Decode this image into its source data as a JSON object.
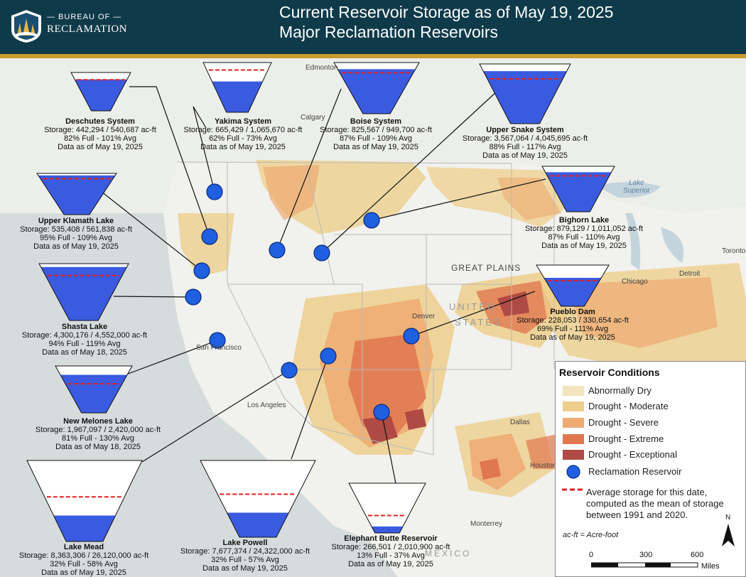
{
  "header": {
    "org_line1": "— BUREAU OF —",
    "org_line2": "RECLAMATION",
    "title_line1": "Current Reservoir Storage as of May 19, 2025",
    "title_line2": "Major Reclamation Reservoirs",
    "bg_color": "#0f3a4a",
    "accent_color": "#c99a2e"
  },
  "map_labels": {
    "edmonton": "Edmonton",
    "calgary": "Calgary",
    "lake_superior_1": "Lake",
    "lake_superior_2": "Superior",
    "toronto": "Toronto",
    "detroit": "Detroit",
    "chicago": "Chicago",
    "great_plains": "GREAT PLAINS",
    "united_1": "UNITED",
    "united_2": "STATES",
    "denver": "Denver",
    "san_francisco": "San Francisco",
    "los_angeles": "Los Angeles",
    "dallas": "Dallas",
    "houston": "Houston",
    "monterrey": "Monterrey",
    "mexico": "MEXICO"
  },
  "reservoirs": [
    {
      "name": "Deschutes System",
      "storage": "Storage: 442,294 / 540,687 ac-ft",
      "pct": "82% Full - 101% Avg",
      "date": "Data as of May 19, 2025",
      "fill": 0.82,
      "avg": 0.81
    },
    {
      "name": "Yakima System",
      "storage": "Storage: 665,429 / 1,065,670 ac-ft",
      "pct": "62% Full - 73% Avg",
      "date": "Data as of May 19, 2025",
      "fill": 0.62,
      "avg": 0.85
    },
    {
      "name": "Boise System",
      "storage": "Storage: 825,567 / 949,700 ac-ft",
      "pct": "87% Full - 109% Avg",
      "date": "Data as of May 19, 2025",
      "fill": 0.87,
      "avg": 0.8
    },
    {
      "name": "Upper Snake System",
      "storage": "Storage: 3,567,064 / 4,045,695 ac-ft",
      "pct": "88% Full - 117% Avg",
      "date": "Data as of May 19, 2025",
      "fill": 0.88,
      "avg": 0.75
    },
    {
      "name": "Upper Klamath Lake",
      "storage": "Storage: 535,408 / 561,838 ac-ft",
      "pct": "95% Full - 109% Avg",
      "date": "Data as of May 19, 2025",
      "fill": 0.95,
      "avg": 0.87
    },
    {
      "name": "Bighorn Lake",
      "storage": "Storage: 879,129 / 1,011,052 ac-ft",
      "pct": "87% Full - 110% Avg",
      "date": "Data as of May 19, 2025",
      "fill": 0.87,
      "avg": 0.79
    },
    {
      "name": "Shasta Lake",
      "storage": "Storage: 4,300,176 / 4,552,000 ac-ft",
      "pct": "94% Full - 119% Avg",
      "date": "Data as of May 18, 2025",
      "fill": 0.94,
      "avg": 0.79
    },
    {
      "name": "Pueblo Dam",
      "storage": "Storage: 228,053 / 330,654 ac-ft",
      "pct": "69% Full - 111% Avg",
      "date": "Data as of May 19, 2025",
      "fill": 0.69,
      "avg": 0.62
    },
    {
      "name": "New Melones Lake",
      "storage": "Storage: 1,967,097 / 2,420,000 ac-ft",
      "pct": "81% Full - 130% Avg",
      "date": "Data as of May 18, 2025",
      "fill": 0.81,
      "avg": 0.62
    },
    {
      "name": "Lake Mead",
      "storage": "Storage: 8,363,306 / 26,120,000 ac-ft",
      "pct": "32% Full - 58% Avg",
      "date": "Data as of May 19, 2025",
      "fill": 0.32,
      "avg": 0.55
    },
    {
      "name": "Lake Powell",
      "storage": "Storage: 7,677,374 / 24,322,000 ac-ft",
      "pct": "32% Full - 57% Avg",
      "date": "Data as of May 19, 2025",
      "fill": 0.32,
      "avg": 0.56
    },
    {
      "name": "Elephant Butte Reservoir",
      "storage": "Storage: 266,501 / 2,010,900 ac-ft",
      "pct": "13% Full - 37% Avg",
      "date": "Data as of May 19, 2025",
      "fill": 0.13,
      "avg": 0.35
    }
  ],
  "legend": {
    "title": "Reservoir Conditions",
    "items": [
      {
        "label": "Abnormally Dry",
        "color": "#f3e5bd"
      },
      {
        "label": "Drought - Moderate",
        "color": "#edcf8c"
      },
      {
        "label": "Drought - Severe",
        "color": "#eeaa72"
      },
      {
        "label": "Drought - Extreme",
        "color": "#e0774f"
      },
      {
        "label": "Drought - Exceptional",
        "color": "#b04a44"
      }
    ],
    "reservoir_label": "Reclamation Reservoir",
    "reservoir_color": "#1f5fe0",
    "avg_note_1": "Average storage for this date,",
    "avg_note_2": "computed as the mean of storage",
    "avg_note_3": "between 1991 and 2020.",
    "avg_line_color": "#e02020",
    "acft_note": "ac-ft = Acre-foot",
    "north": "N",
    "scale_0": "0",
    "scale_300": "300",
    "scale_600": "600",
    "scale_unit": "Miles"
  }
}
